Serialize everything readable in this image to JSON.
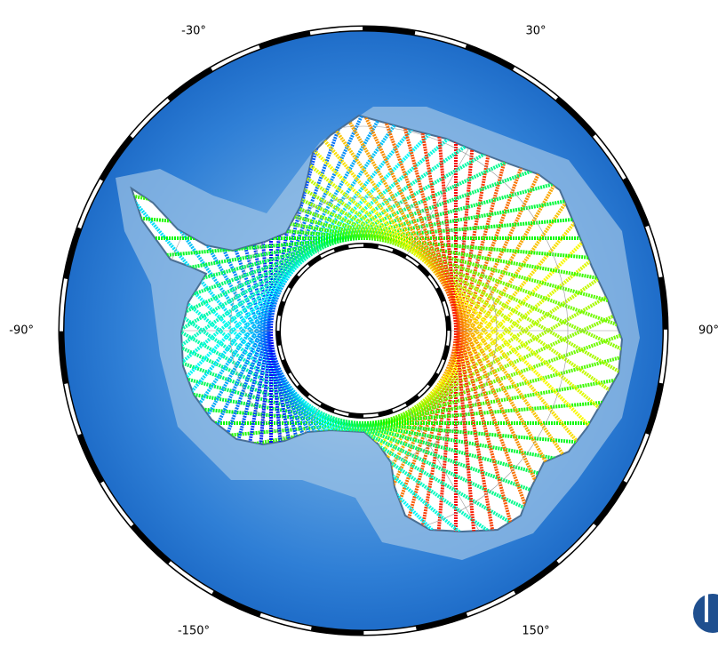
{
  "map": {
    "longitude_labels": [
      "-30°",
      "30°",
      "-90°",
      "90°",
      "-150°",
      "150°"
    ]
  }
}
